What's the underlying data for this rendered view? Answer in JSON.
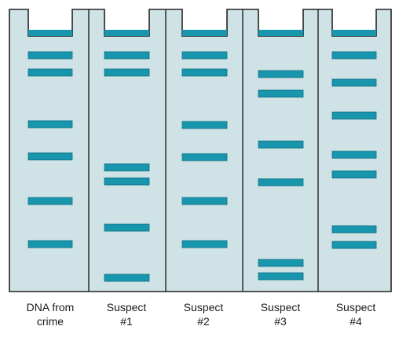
{
  "colors": {
    "gel_fill": "#cfe3e6",
    "outline": "#222222",
    "band": "#1896ae",
    "band_edge": "#0e6f83"
  },
  "lanes": [
    {
      "label_line1": "DNA from",
      "label_line2": "crime",
      "bands": [
        70,
        92,
        158,
        199,
        256,
        311
      ]
    },
    {
      "label_line1": "Suspect",
      "label_line2": "#1",
      "bands": [
        70,
        92,
        213,
        231,
        290,
        354
      ]
    },
    {
      "label_line1": "Suspect",
      "label_line2": "#2",
      "bands": [
        70,
        92,
        159,
        200,
        256,
        311
      ]
    },
    {
      "label_line1": "Suspect",
      "label_line2": "#3",
      "bands": [
        94,
        119,
        184,
        232,
        335,
        352
      ]
    },
    {
      "label_line1": "Suspect",
      "label_line2": "#4",
      "bands": [
        70,
        105,
        147,
        197,
        222,
        292,
        312
      ]
    }
  ]
}
